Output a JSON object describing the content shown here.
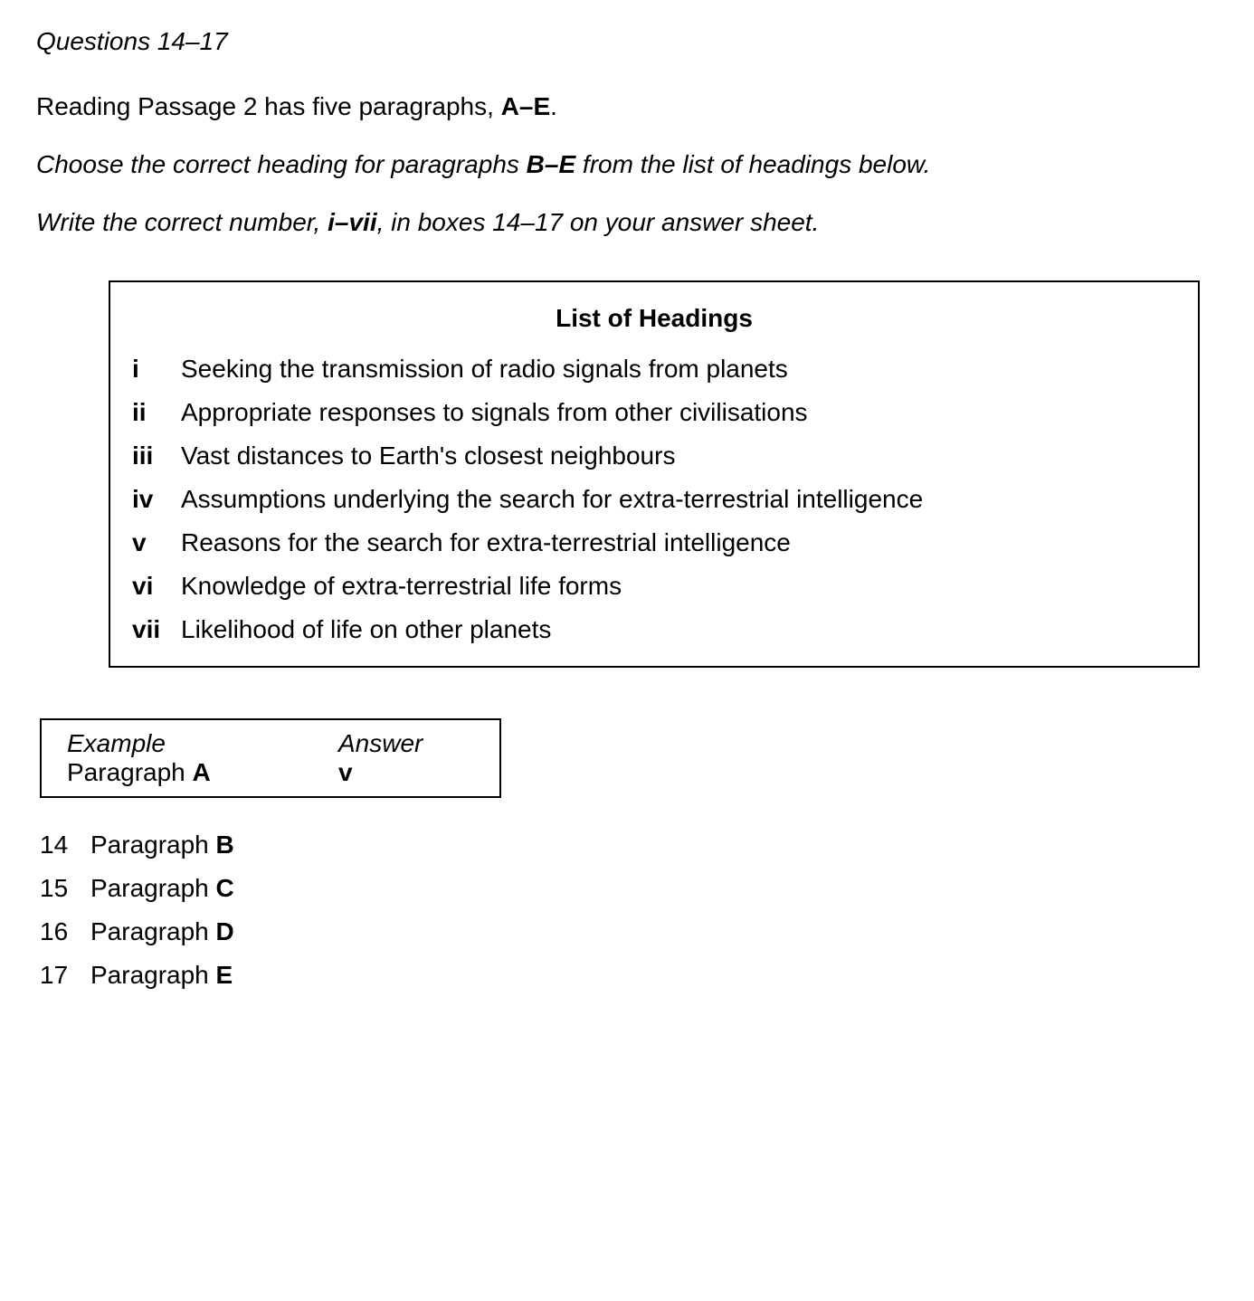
{
  "title": "Questions 14–17",
  "intro": {
    "pre": "Reading Passage 2 has five paragraphs, ",
    "bold": "A–E",
    "post": "."
  },
  "instruction1": {
    "pre": "Choose the correct heading for paragraphs ",
    "bold": "B–E",
    "post": " from the list of headings below."
  },
  "instruction2": {
    "pre": "Write the correct number, ",
    "bold": "i–vii",
    "post": ", in boxes 14–17 on your answer sheet."
  },
  "headings": {
    "title": "List of Headings",
    "items": [
      {
        "num": "i",
        "text": "Seeking the transmission of radio signals from planets"
      },
      {
        "num": "ii",
        "text": "Appropriate responses to signals from other civilisations"
      },
      {
        "num": "iii",
        "text": "Vast distances to Earth's closest neighbours"
      },
      {
        "num": "iv",
        "text": "Assumptions underlying the search for extra-terrestrial intelligence"
      },
      {
        "num": "v",
        "text": "Reasons for the search for extra-terrestrial intelligence"
      },
      {
        "num": "vi",
        "text": "Knowledge of extra-terrestrial life forms"
      },
      {
        "num": "vii",
        "text": "Likelihood of life on other planets"
      }
    ]
  },
  "example": {
    "label": "Example",
    "para_pre": "Paragraph ",
    "para_letter": "A",
    "answer_label": "Answer",
    "answer_value": "v"
  },
  "questions": [
    {
      "num": "14",
      "pre": "Paragraph ",
      "letter": "B"
    },
    {
      "num": "15",
      "pre": "Paragraph ",
      "letter": "C"
    },
    {
      "num": "16",
      "pre": "Paragraph ",
      "letter": "D"
    },
    {
      "num": "17",
      "pre": "Paragraph ",
      "letter": "E"
    }
  ]
}
